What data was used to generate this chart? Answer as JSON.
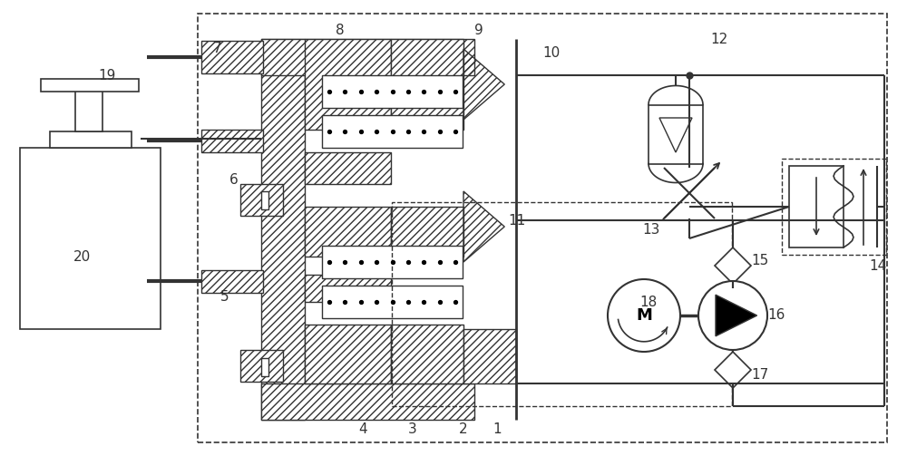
{
  "bg_color": "#ffffff",
  "line_color": "#333333",
  "fig_w": 10.0,
  "fig_h": 5.03,
  "dpi": 100
}
